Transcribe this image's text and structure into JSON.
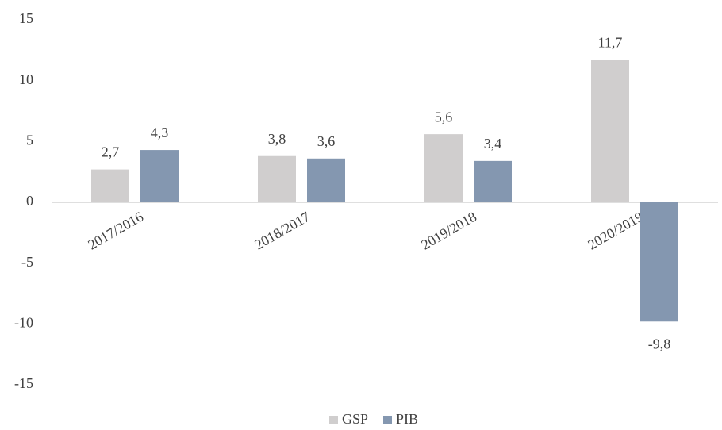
{
  "chart_data": {
    "type": "bar",
    "categories": [
      "2017/2016",
      "2018/2017",
      "2019/2018",
      "2020/2019"
    ],
    "series": [
      {
        "name": "GSP",
        "color": "#d0cece",
        "values": [
          2.7,
          3.8,
          5.6,
          11.7
        ],
        "value_labels": [
          "2,7",
          "3,8",
          "5,6",
          "11,7"
        ]
      },
      {
        "name": "PIB",
        "color": "#8497b0",
        "values": [
          4.3,
          3.6,
          3.4,
          -9.8
        ],
        "value_labels": [
          "4,3",
          "3,6",
          "3,4",
          "-9,8"
        ]
      }
    ],
    "ylim": [
      -15,
      15
    ],
    "yticks": [
      -15,
      -10,
      -5,
      0,
      5,
      10,
      15
    ],
    "grid": false,
    "legend": "bottom"
  }
}
